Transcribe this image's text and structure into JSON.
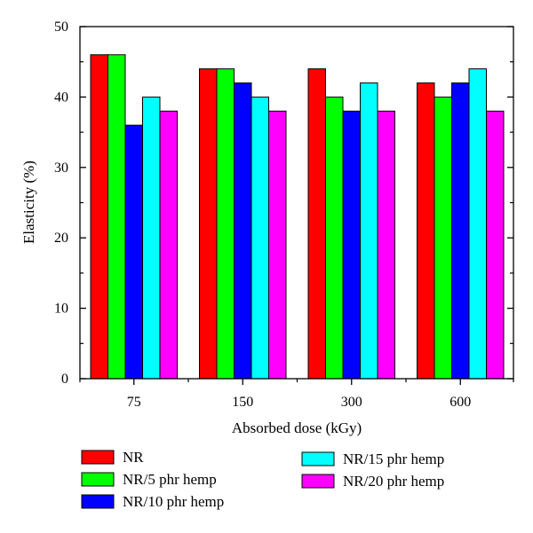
{
  "chart_data": {
    "type": "bar",
    "categories": [
      "75",
      "150",
      "300",
      "600"
    ],
    "series": [
      {
        "name": "NR",
        "values": [
          46,
          44,
          44,
          42
        ],
        "color": "#ff0000"
      },
      {
        "name": "NR/5 phr hemp",
        "values": [
          46,
          44,
          40,
          40
        ],
        "color": "#00ff00"
      },
      {
        "name": "NR/10 phr hemp",
        "values": [
          36,
          42,
          38,
          42
        ],
        "color": "#0000ff"
      },
      {
        "name": "NR/15 phr hemp",
        "values": [
          40,
          40,
          42,
          44
        ],
        "color": "#00ffff"
      },
      {
        "name": "NR/20 phr hemp",
        "values": [
          38,
          38,
          38,
          38
        ],
        "color": "#ff00ff"
      }
    ],
    "xlabel": "Absorbed dose (kGy)",
    "ylabel": "Elasticity (%)",
    "ylim": [
      0,
      50
    ],
    "yticks": [
      "0",
      "10",
      "20",
      "30",
      "40",
      "50"
    ],
    "grid": false,
    "legend": "bottom"
  }
}
